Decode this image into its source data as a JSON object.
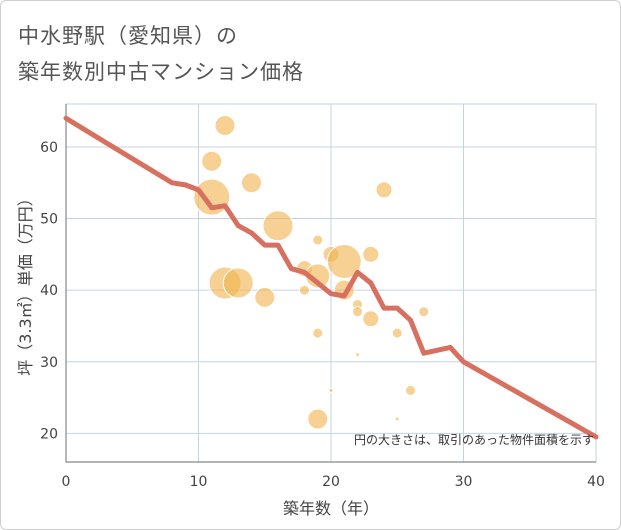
{
  "title_line1": "中水野駅（愛知県）の",
  "title_line2": "築年数別中古マンション価格",
  "chart_data": {
    "type": "scatter",
    "xlabel": "築年数（年）",
    "ylabel": "坪（3.3㎡）単価（万円）",
    "xlim": [
      0,
      40
    ],
    "ylim": [
      16,
      66
    ],
    "x_ticks": [
      0,
      10,
      20,
      30,
      40
    ],
    "y_ticks": [
      20,
      30,
      40,
      50,
      60
    ],
    "grid": true,
    "annotation": "円の大きさは、取引のあった物件面積を示す",
    "colors": {
      "bubble": "#f0b450",
      "trend": "#d87060",
      "grid": "#c5d3e0",
      "axis": "#888888"
    },
    "bubbles": [
      {
        "x": 11,
        "y": 53,
        "size": 18
      },
      {
        "x": 12,
        "y": 63,
        "size": 10
      },
      {
        "x": 11,
        "y": 58,
        "size": 10
      },
      {
        "x": 14,
        "y": 55,
        "size": 10
      },
      {
        "x": 16,
        "y": 49,
        "size": 15
      },
      {
        "x": 12,
        "y": 41,
        "size": 16
      },
      {
        "x": 13,
        "y": 41,
        "size": 15
      },
      {
        "x": 15,
        "y": 39,
        "size": 10
      },
      {
        "x": 18,
        "y": 43,
        "size": 8
      },
      {
        "x": 18,
        "y": 40,
        "size": 5
      },
      {
        "x": 19,
        "y": 47,
        "size": 5
      },
      {
        "x": 19,
        "y": 42,
        "size": 12
      },
      {
        "x": 19,
        "y": 34,
        "size": 5
      },
      {
        "x": 19,
        "y": 22,
        "size": 10
      },
      {
        "x": 20,
        "y": 45,
        "size": 8
      },
      {
        "x": 21,
        "y": 44,
        "size": 17
      },
      {
        "x": 21,
        "y": 40,
        "size": 10
      },
      {
        "x": 20,
        "y": 26,
        "size": 2
      },
      {
        "x": 22,
        "y": 38,
        "size": 5
      },
      {
        "x": 22,
        "y": 37,
        "size": 5
      },
      {
        "x": 22,
        "y": 31,
        "size": 2
      },
      {
        "x": 23,
        "y": 45,
        "size": 8
      },
      {
        "x": 23,
        "y": 36,
        "size": 8
      },
      {
        "x": 24,
        "y": 54,
        "size": 8
      },
      {
        "x": 25,
        "y": 34,
        "size": 5
      },
      {
        "x": 25,
        "y": 22,
        "size": 2
      },
      {
        "x": 26,
        "y": 26,
        "size": 5
      },
      {
        "x": 27,
        "y": 37,
        "size": 5
      }
    ],
    "trend": [
      {
        "x": 0,
        "y": 64
      },
      {
        "x": 8,
        "y": 55
      },
      {
        "x": 9,
        "y": 54.7
      },
      {
        "x": 10,
        "y": 54
      },
      {
        "x": 11,
        "y": 51.5
      },
      {
        "x": 12,
        "y": 51.8
      },
      {
        "x": 13,
        "y": 49
      },
      {
        "x": 14,
        "y": 48
      },
      {
        "x": 15,
        "y": 46.3
      },
      {
        "x": 16,
        "y": 46.3
      },
      {
        "x": 17,
        "y": 43
      },
      {
        "x": 18,
        "y": 42.5
      },
      {
        "x": 19,
        "y": 41
      },
      {
        "x": 20,
        "y": 39.5
      },
      {
        "x": 21,
        "y": 39.2
      },
      {
        "x": 22,
        "y": 42.5
      },
      {
        "x": 23,
        "y": 41
      },
      {
        "x": 24,
        "y": 37.5
      },
      {
        "x": 25,
        "y": 37.5
      },
      {
        "x": 26,
        "y": 35.8
      },
      {
        "x": 27,
        "y": 31.2
      },
      {
        "x": 28,
        "y": 31.6
      },
      {
        "x": 29,
        "y": 32
      },
      {
        "x": 30,
        "y": 30
      },
      {
        "x": 40,
        "y": 19.5
      }
    ]
  }
}
